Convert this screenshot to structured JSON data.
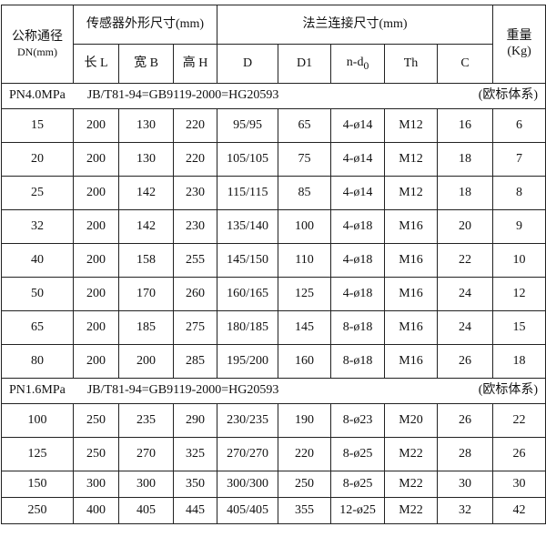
{
  "header": {
    "dn": "公称通径",
    "dn_unit": "DN(mm)",
    "sensor": "传感器外形尺寸(mm)",
    "flange": "法兰连接尺寸(mm)",
    "weight": "重量",
    "weight_unit": "(Kg)",
    "cols": [
      "长 L",
      "宽 B",
      "高 H",
      "D",
      "D1",
      "n-d",
      "Th",
      "C"
    ],
    "nd_sub": "0"
  },
  "sections": [
    {
      "pressure": "PN4.0MPa",
      "standard": "JB/T81-94=GB9119-2000=HG20593",
      "system": "(欧标体系)",
      "rows": [
        [
          "15",
          "200",
          "130",
          "220",
          "95/95",
          "65",
          "4-ø14",
          "M12",
          "16",
          "6"
        ],
        [
          "20",
          "200",
          "130",
          "220",
          "105/105",
          "75",
          "4-ø14",
          "M12",
          "18",
          "7"
        ],
        [
          "25",
          "200",
          "142",
          "230",
          "115/115",
          "85",
          "4-ø14",
          "M12",
          "18",
          "8"
        ],
        [
          "32",
          "200",
          "142",
          "230",
          "135/140",
          "100",
          "4-ø18",
          "M16",
          "20",
          "9"
        ],
        [
          "40",
          "200",
          "158",
          "255",
          "145/150",
          "110",
          "4-ø18",
          "M16",
          "22",
          "10"
        ],
        [
          "50",
          "200",
          "170",
          "260",
          "160/165",
          "125",
          "4-ø18",
          "M16",
          "24",
          "12"
        ],
        [
          "65",
          "200",
          "185",
          "275",
          "180/185",
          "145",
          "8-ø18",
          "M16",
          "24",
          "15"
        ],
        [
          "80",
          "200",
          "200",
          "285",
          "195/200",
          "160",
          "8-ø18",
          "M16",
          "26",
          "18"
        ]
      ]
    },
    {
      "pressure": "PN1.6MPa",
      "standard": "JB/T81-94=GB9119-2000=HG20593",
      "system": "(欧标体系)",
      "rows": [
        [
          "100",
          "250",
          "235",
          "290",
          "230/235",
          "190",
          "8-ø23",
          "M20",
          "26",
          "22"
        ],
        [
          "125",
          "250",
          "270",
          "325",
          "270/270",
          "220",
          "8-ø25",
          "M22",
          "28",
          "26"
        ],
        [
          "150",
          "300",
          "300",
          "350",
          "300/300",
          "250",
          "8-ø25",
          "M22",
          "30",
          "30"
        ],
        [
          "250",
          "400",
          "405",
          "445",
          "405/405",
          "355",
          "12-ø25",
          "M22",
          "32",
          "42"
        ]
      ]
    }
  ]
}
